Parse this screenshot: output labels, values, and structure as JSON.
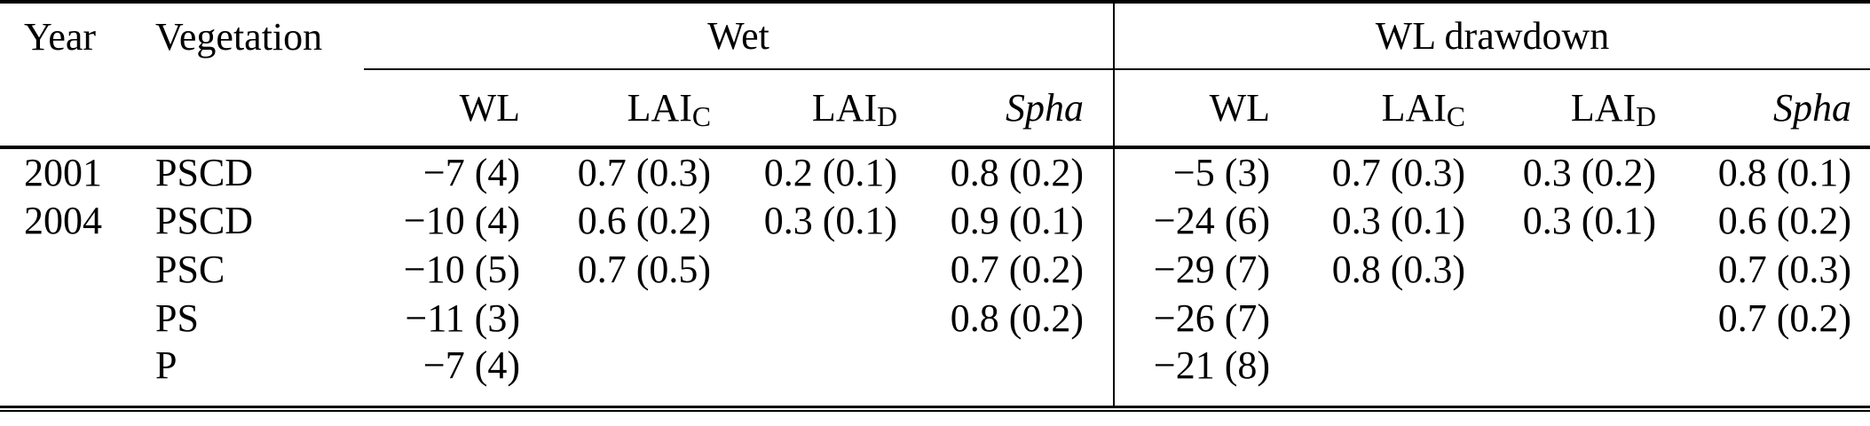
{
  "table": {
    "header": {
      "year": "Year",
      "vegetation": "Vegetation",
      "group_wet": "Wet",
      "group_drawdown": "WL drawdown",
      "sub": {
        "wl": "WL",
        "lai": "LAI",
        "sub_c": "C",
        "sub_d": "D",
        "spha": "Spha"
      }
    },
    "rows": [
      {
        "year": "2001",
        "vegetation": "PSCD",
        "wet": {
          "wl": "−7 (4)",
          "lai_c": "0.7 (0.3)",
          "lai_d": "0.2 (0.1)",
          "spha": "0.8 (0.2)"
        },
        "drawdown": {
          "wl": "−5 (3)",
          "lai_c": "0.7 (0.3)",
          "lai_d": "0.3 (0.2)",
          "spha": "0.8 (0.1)"
        }
      },
      {
        "year": "2004",
        "vegetation": "PSCD",
        "wet": {
          "wl": "−10 (4)",
          "lai_c": "0.6 (0.2)",
          "lai_d": "0.3 (0.1)",
          "spha": "0.9 (0.1)"
        },
        "drawdown": {
          "wl": "−24 (6)",
          "lai_c": "0.3 (0.1)",
          "lai_d": "0.3 (0.1)",
          "spha": "0.6 (0.2)"
        }
      },
      {
        "year": "",
        "vegetation": "PSC",
        "wet": {
          "wl": "−10 (5)",
          "lai_c": "0.7 (0.5)",
          "lai_d": "",
          "spha": "0.7 (0.2)"
        },
        "drawdown": {
          "wl": "−29 (7)",
          "lai_c": "0.8 (0.3)",
          "lai_d": "",
          "spha": "0.7 (0.3)"
        }
      },
      {
        "year": "",
        "vegetation": "PS",
        "wet": {
          "wl": "−11 (3)",
          "lai_c": "",
          "lai_d": "",
          "spha": "0.8 (0.2)"
        },
        "drawdown": {
          "wl": "−26 (7)",
          "lai_c": "",
          "lai_d": "",
          "spha": "0.7 (0.2)"
        }
      },
      {
        "year": "",
        "vegetation": "P",
        "wet": {
          "wl": "−7 (4)",
          "lai_c": "",
          "lai_d": "",
          "spha": ""
        },
        "drawdown": {
          "wl": "−21 (8)",
          "lai_c": "",
          "lai_d": "",
          "spha": ""
        }
      }
    ],
    "colors": {
      "text": "#000000",
      "rule": "#000000",
      "background": "#ffffff"
    }
  }
}
